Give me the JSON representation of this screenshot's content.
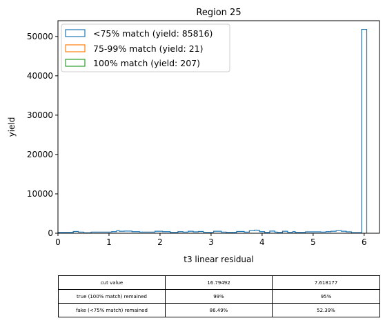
{
  "chart_data": {
    "type": "histogram",
    "title": "Region 25",
    "xlabel": "t3 linear residual",
    "ylabel": "yield",
    "xlim": [
      0,
      6.3
    ],
    "ylim": [
      0,
      54000
    ],
    "xticks": [
      0,
      1,
      2,
      3,
      4,
      5,
      6
    ],
    "yticks": [
      0,
      10000,
      20000,
      30000,
      40000,
      50000
    ],
    "legend_position": "upper-left",
    "grid": false,
    "series": [
      {
        "name": "<75% match (yield: 85816)",
        "color": "#1f77b4",
        "bin_edges": [
          0,
          0.3,
          0.4,
          0.5,
          0.65,
          0.8,
          1.05,
          1.15,
          1.2,
          1.3,
          1.45,
          1.6,
          1.9,
          2.05,
          2.2,
          2.35,
          2.45,
          2.55,
          2.65,
          2.75,
          2.85,
          2.95,
          3.05,
          3.2,
          3.3,
          3.5,
          3.65,
          3.75,
          3.85,
          3.9,
          3.95,
          4.05,
          4.15,
          4.25,
          4.3,
          4.4,
          4.5,
          4.6,
          4.65,
          4.75,
          4.85,
          5.05,
          5.15,
          5.25,
          5.35,
          5.45,
          5.55,
          5.65,
          5.75,
          5.95,
          6.05
        ],
        "values": [
          200,
          450,
          300,
          120,
          300,
          300,
          400,
          650,
          500,
          550,
          400,
          300,
          500,
          400,
          200,
          400,
          300,
          500,
          350,
          450,
          250,
          250,
          500,
          300,
          200,
          450,
          300,
          650,
          800,
          750,
          400,
          200,
          550,
          300,
          200,
          500,
          250,
          400,
          200,
          200,
          350,
          350,
          300,
          400,
          500,
          650,
          500,
          350,
          150,
          51800
        ]
      },
      {
        "name": "75-99% match (yield: 21)",
        "color": "#ff7f0e",
        "bin_edges": [],
        "values": []
      },
      {
        "name": "100% match (yield: 207)",
        "color": "#2ca02c",
        "bin_edges": [],
        "values": []
      }
    ]
  },
  "table": {
    "rows": [
      {
        "label": "cut value",
        "c1": "16.79492",
        "c2": "7.618177"
      },
      {
        "label": "true (100% match) remained",
        "c1": "99%",
        "c2": "95%"
      },
      {
        "label": "fake (<75% match) remained",
        "c1": "86.49%",
        "c2": "52.39%"
      }
    ]
  }
}
